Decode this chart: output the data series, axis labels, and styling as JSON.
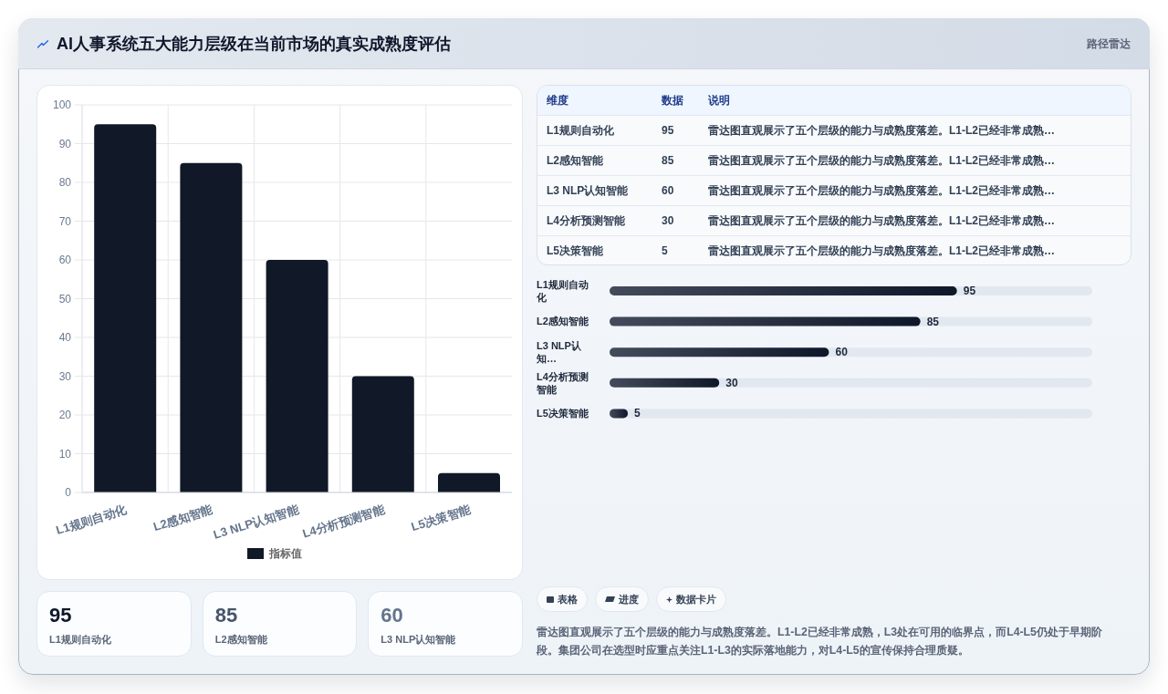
{
  "chart_data": [
    {
      "type": "other",
      "title": "AI人事系统五大能力层级在当前市场的真实成熟度评估",
      "subtitle": "路径雷达"
    },
    {
      "type": "bar",
      "categories": [
        "L1规则自动化",
        "L2感知智能",
        "L3 NLP认知智能",
        "L4分析预测智能",
        "L5决策智能"
      ],
      "series": [
        {
          "name": "指标值",
          "color": "#111827",
          "values": [
            95,
            85,
            60,
            30,
            5
          ]
        }
      ],
      "ylim": [
        0,
        100
      ],
      "yticks": [
        0,
        10,
        20,
        30,
        40,
        50,
        60,
        70,
        80,
        90,
        100
      ],
      "grid": true,
      "legend": "bottom"
    },
    {
      "type": "other",
      "categories": [
        "L1规则自动化",
        "L2感知智能",
        "L3 NLP认知智能",
        "L4分析预测智能",
        "L5决策智能"
      ],
      "values": [
        95,
        85,
        60,
        30,
        5
      ],
      "data_labels": true,
      "annotations": [
        "维度",
        "数据",
        "说明",
        "雷达图直观展示了五个层级的能力与成熟度落差。L1-L2已经非常成熟…",
        "雷达图直观展示了五个层级的能力与成熟度落差。L1-L2已经非常成熟…",
        "雷达图直观展示了五个层级的能力与成熟度落差。L1-L2已经非常成熟…",
        "雷达图直观展示了五个层级的能力与成熟度落差。L1-L2已经非常成熟…",
        "雷达图直观展示了五个层级的能力与成熟度落差。L1-L2已经非常成熟…"
      ]
    },
    {
      "type": "bar",
      "orientation": "horizontal",
      "categories": [
        "L1规则自动化",
        "L2感知智能",
        "L3 NLP认知…",
        "L4分析预测智能",
        "L5决策智能"
      ],
      "values": [
        95,
        85,
        60,
        30,
        5
      ],
      "color": "#0f172a",
      "xlim": [
        0,
        132
      ],
      "data_labels": true
    },
    {
      "type": "other",
      "categories": [
        "L1规则自动化",
        "L2感知智能",
        "L3 NLP认知智能"
      ],
      "values": [
        95,
        85,
        60
      ],
      "data_labels": true
    },
    {
      "type": "other",
      "annotations": [
        "表格",
        "进度",
        "数据卡片",
        "雷达图直观展示了五个层级的能力与成熟度落差。L1-L2已经非常成熟，L3处在可用的临界点，而L4-L5仍处于早期阶段。集团公司在选型时应重点关注L1-L3的实际落地能力，对L4-L5的宣传保持合理质疑。"
      ]
    }
  ]
}
